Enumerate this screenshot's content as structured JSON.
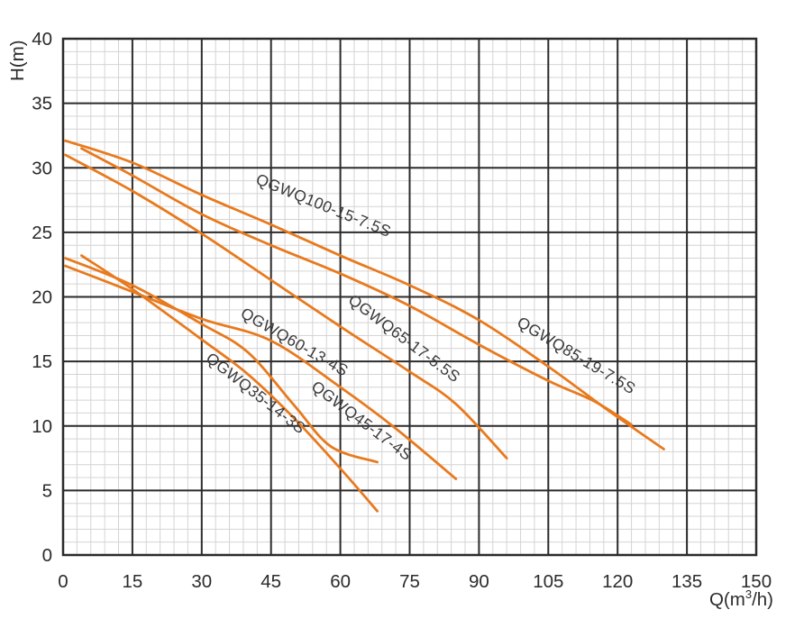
{
  "chart_data": {
    "type": "line",
    "title": "",
    "xlabel_prefix": "Q(m",
    "xlabel_sup": "3",
    "xlabel_suffix": "/h)",
    "ylabel": "H(m)",
    "xlim": [
      0,
      150
    ],
    "ylim": [
      0,
      40
    ],
    "x_ticks": [
      0,
      15,
      30,
      45,
      60,
      75,
      90,
      105,
      120,
      135,
      150
    ],
    "y_ticks": [
      0,
      5,
      10,
      15,
      20,
      25,
      30,
      35,
      40
    ],
    "x_minor_step": 3,
    "y_minor_step": 1,
    "grid": true,
    "legend_position": "inline-labels",
    "curve_color": "#e87a1e",
    "major_grid_color": "#2b2b2b",
    "minor_grid_color": "#d4d4d4",
    "text_color": "#2b2b2b",
    "label_color": "#3a3a3a",
    "series": [
      {
        "name": "QGWQ100-15-7.5S",
        "points": [
          [
            0.5,
            32.1
          ],
          [
            15,
            30.4
          ],
          [
            30,
            27.9
          ],
          [
            45,
            25.6
          ],
          [
            60,
            23.2
          ],
          [
            75,
            20.9
          ],
          [
            90,
            18.2
          ],
          [
            105,
            14.6
          ],
          [
            118,
            11.2
          ],
          [
            130,
            8.2
          ]
        ],
        "label": {
          "text": "QGWQ100-15-7.5S",
          "q": 41.5,
          "h": 28.8,
          "angle": 22
        }
      },
      {
        "name": "QGWQ85-19-7.5S",
        "points": [
          [
            4,
            31.5
          ],
          [
            15,
            29.4
          ],
          [
            30,
            26.4
          ],
          [
            45,
            24.0
          ],
          [
            60,
            21.8
          ],
          [
            75,
            19.3
          ],
          [
            90,
            16.3
          ],
          [
            105,
            13.5
          ],
          [
            115,
            11.9
          ],
          [
            123,
            10.1
          ]
        ],
        "label": {
          "text": "QGWQ85-19-7.5S",
          "q": 98.0,
          "h": 17.8,
          "angle": 31
        }
      },
      {
        "name": "QGWQ65-17-5.5S",
        "points": [
          [
            0.5,
            31.0
          ],
          [
            15,
            28.2
          ],
          [
            30,
            24.9
          ],
          [
            45,
            21.3
          ],
          [
            60,
            17.7
          ],
          [
            75,
            14.2
          ],
          [
            85,
            11.7
          ],
          [
            96,
            7.5
          ]
        ],
        "label": {
          "text": "QGWQ65-17-5.5S",
          "q": 61.5,
          "h": 19.6,
          "angle": 37
        }
      },
      {
        "name": "QGWQ60-13-4S",
        "points": [
          [
            0.5,
            22.4
          ],
          [
            15,
            20.4
          ],
          [
            30,
            18.3
          ],
          [
            45,
            16.6
          ],
          [
            60,
            13.0
          ],
          [
            72,
            9.8
          ],
          [
            85,
            5.9
          ]
        ],
        "label": {
          "text": "QGWQ60-13-4S",
          "q": 38.2,
          "h": 18.5,
          "angle": 30
        }
      },
      {
        "name": "QGWQ45-17-4S",
        "points": [
          [
            0.5,
            23.0
          ],
          [
            15,
            20.9
          ],
          [
            30,
            17.9
          ],
          [
            40,
            15.7
          ],
          [
            50,
            11.6
          ],
          [
            58,
            8.4
          ],
          [
            68,
            7.2
          ]
        ],
        "label": {
          "text": "QGWQ45-17-4S",
          "q": 53.5,
          "h": 12.9,
          "angle": 37
        }
      },
      {
        "name": "QGWQ35-14-3S",
        "points": [
          [
            4,
            23.2
          ],
          [
            15,
            20.6
          ],
          [
            30,
            16.7
          ],
          [
            40,
            14.0
          ],
          [
            50,
            10.6
          ],
          [
            60,
            6.7
          ],
          [
            68,
            3.4
          ]
        ],
        "label": {
          "text": "QGWQ35-14-3S",
          "q": 30.7,
          "h": 15.1,
          "angle": 38
        }
      }
    ]
  }
}
